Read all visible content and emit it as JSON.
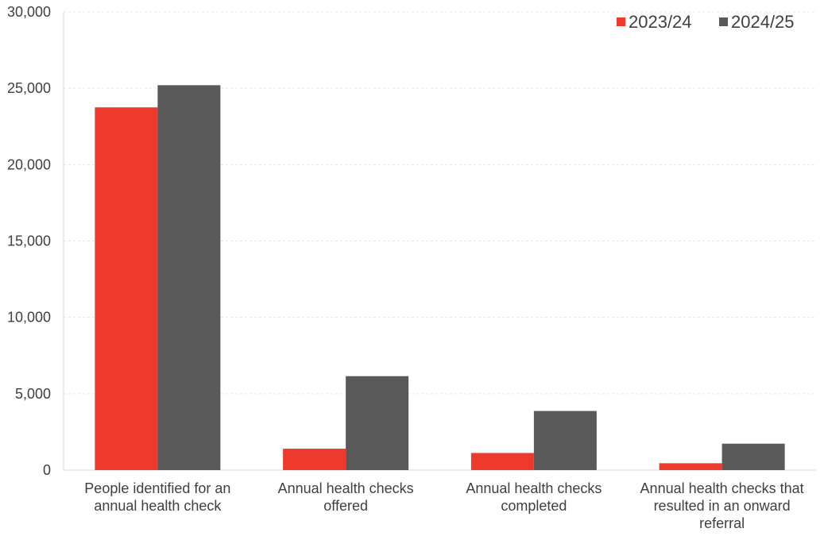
{
  "chart_data": {
    "type": "bar",
    "title": "",
    "xlabel": "",
    "ylabel": "",
    "ylim": [
      0,
      30000
    ],
    "yticks": [
      0,
      5000,
      10000,
      15000,
      20000,
      25000,
      30000
    ],
    "ytick_labels": [
      "0",
      "5,000",
      "10,000",
      "15,000",
      "20,000",
      "25,000",
      "30,000"
    ],
    "grid": true,
    "legend_position": "top-right",
    "categories": [
      [
        "People identified for an",
        "annual health check"
      ],
      [
        "Annual health checks",
        "offered"
      ],
      [
        "Annual health checks",
        "completed"
      ],
      [
        "Annual health checks that",
        "resulted in an onward",
        "referral"
      ]
    ],
    "series": [
      {
        "name": "2023/24",
        "color": "#ee3a2c",
        "values": [
          23750,
          1400,
          1120,
          450
        ]
      },
      {
        "name": "2024/25",
        "color": "#595959",
        "values": [
          25200,
          6150,
          3870,
          1730
        ]
      }
    ]
  }
}
